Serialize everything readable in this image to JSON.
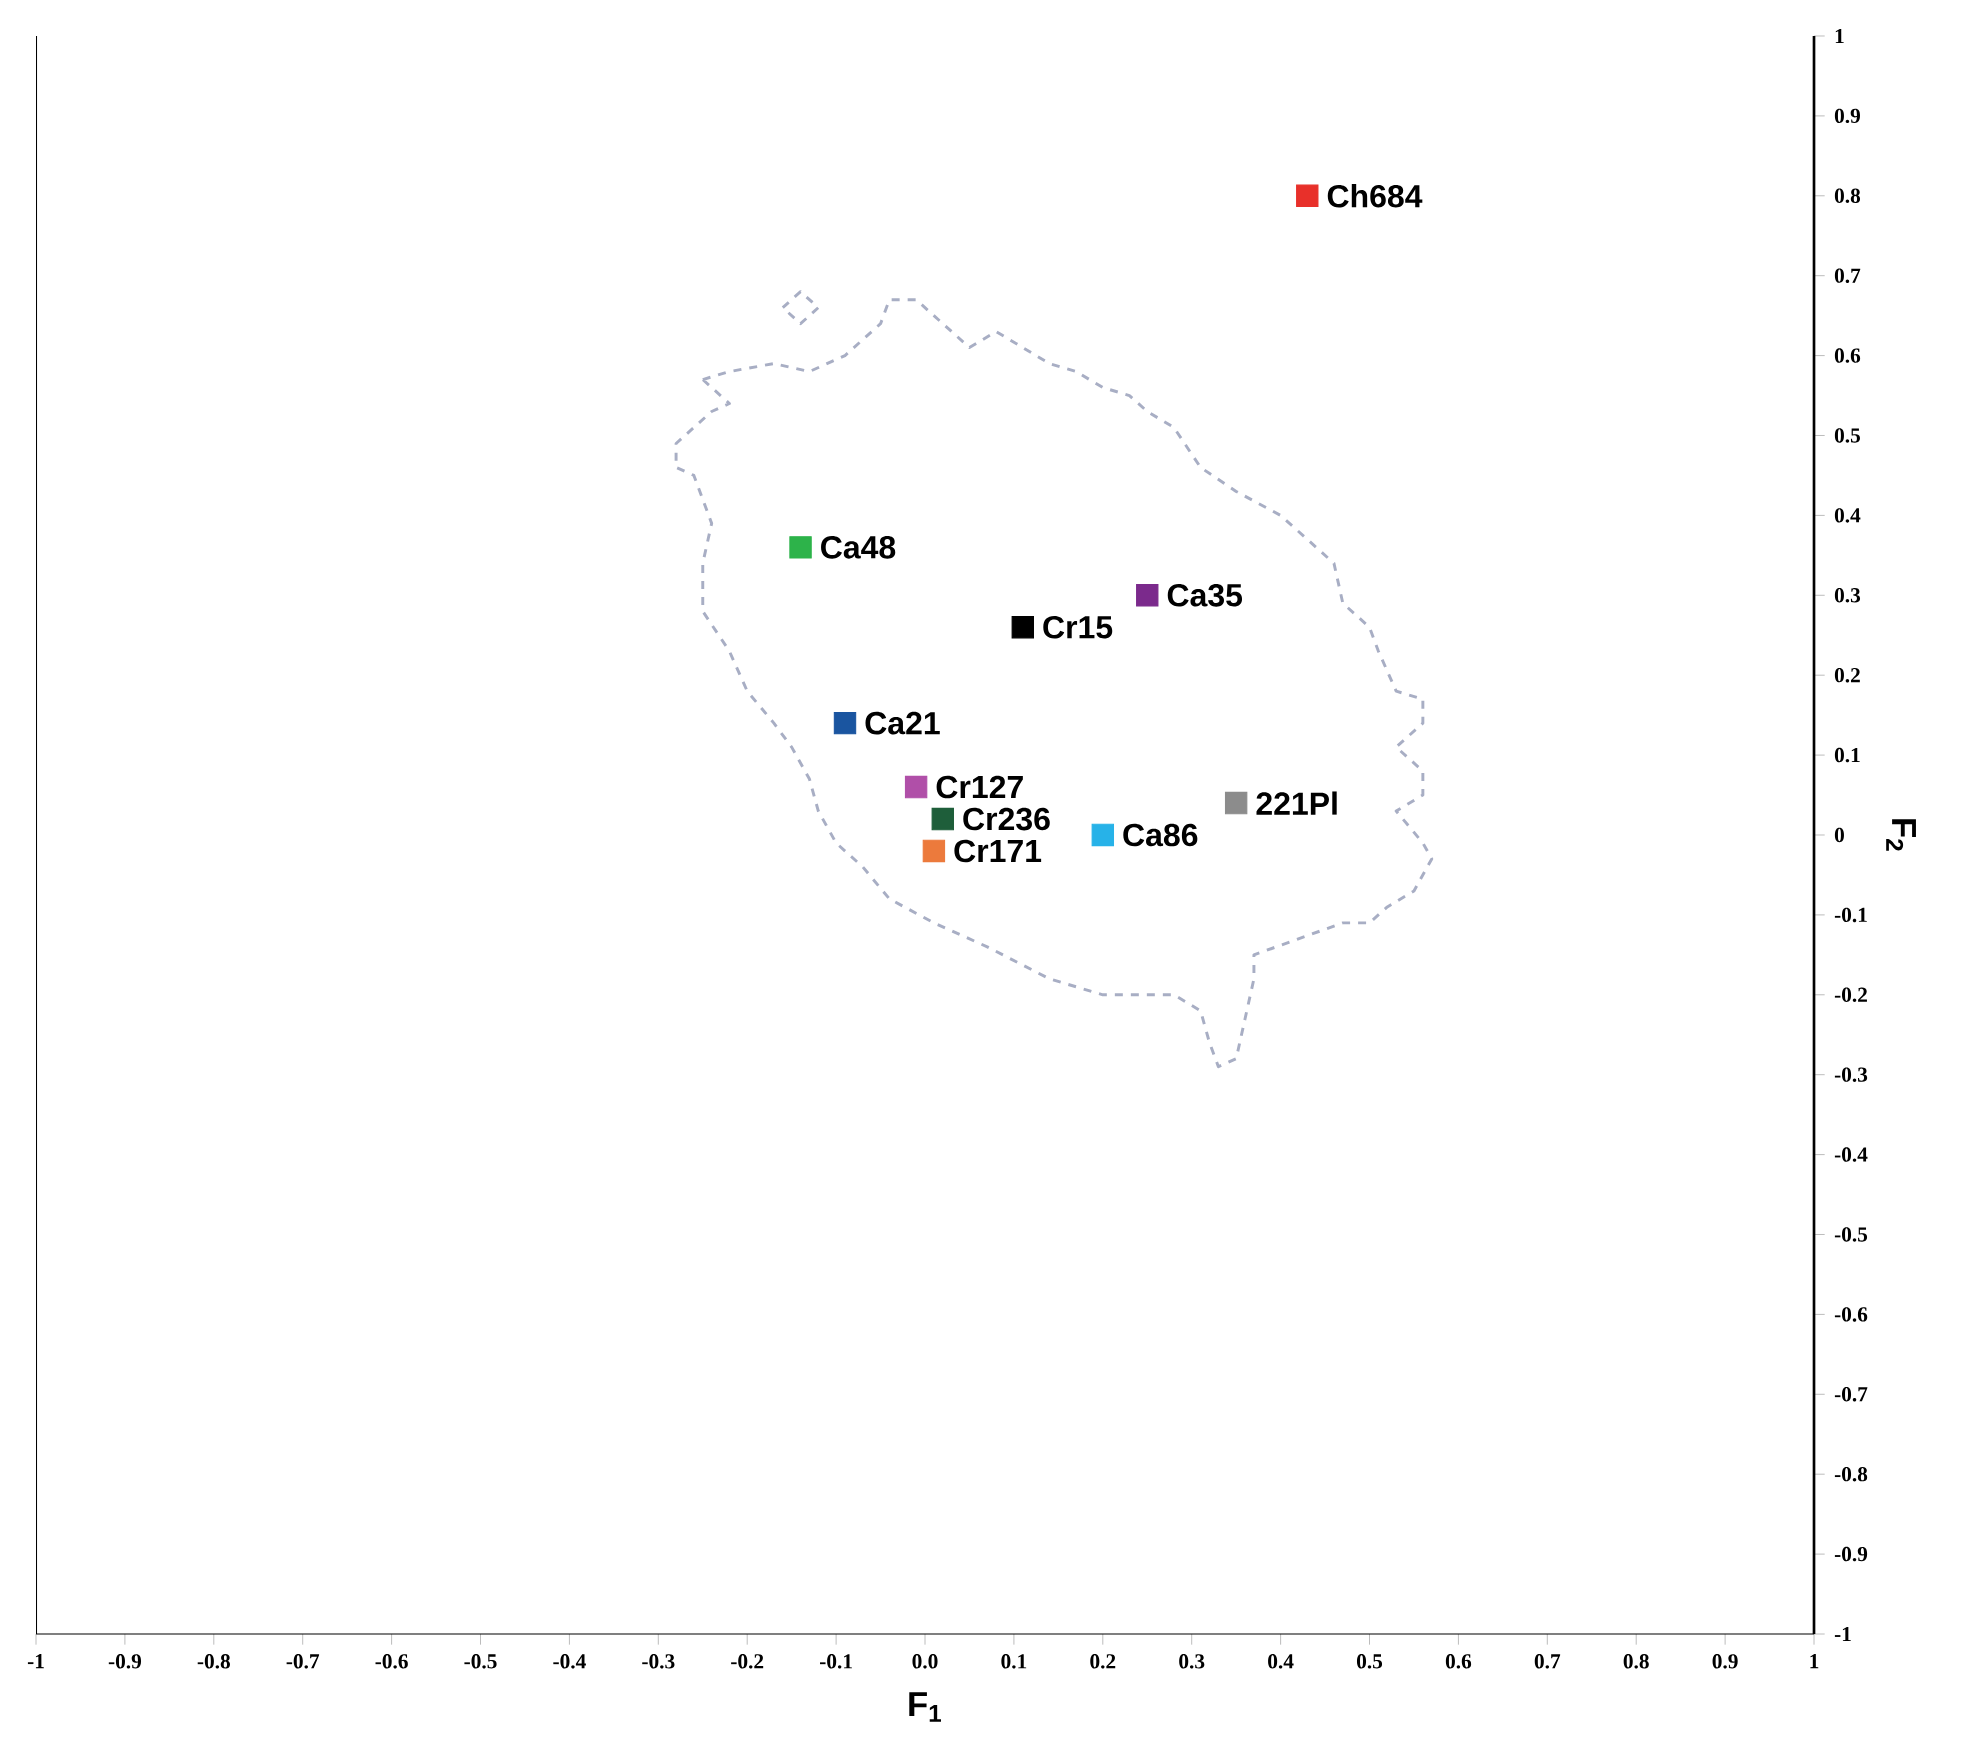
{
  "chart_data": {
    "type": "scatter",
    "xlabel": "F$_{1}$",
    "ylabel": "F$_{2}$",
    "marker": "square",
    "xlim": [
      -1,
      1
    ],
    "ylim": [
      -1,
      1
    ],
    "xticks": [
      -1,
      -0.9,
      -0.8,
      -0.7,
      -0.6,
      -0.5,
      -0.4,
      -0.3,
      -0.2,
      -0.1,
      {
        "value": 0,
        "label": "0.0"
      },
      0.1,
      0.2,
      0.3,
      0.4,
      0.5,
      0.6,
      0.7,
      0.8,
      0.9,
      1
    ],
    "yticks": [
      -1,
      -0.9,
      -0.8,
      -0.7,
      -0.6,
      -0.5,
      -0.4,
      -0.3,
      -0.2,
      -0.1,
      0,
      0.1,
      0.2,
      0.3,
      0.4,
      0.5,
      0.6,
      0.7,
      0.8,
      0.9,
      1
    ],
    "series": [
      {
        "name": "Ch684",
        "color": "#e8302a",
        "x": [
          0.43
        ],
        "values": [
          0.8
        ]
      },
      {
        "name": "Ca48",
        "color": "#2db34a",
        "x": [
          -0.14
        ],
        "values": [
          0.36
        ]
      },
      {
        "name": "Ca35",
        "color": "#7b2a8c",
        "x": [
          0.25
        ],
        "values": [
          0.3
        ]
      },
      {
        "name": "Cr15",
        "color": "#000000",
        "x": [
          0.11
        ],
        "values": [
          0.26
        ]
      },
      {
        "name": "Ca21",
        "color": "#1a55a0",
        "x": [
          -0.09
        ],
        "values": [
          0.14
        ]
      },
      {
        "name": "Cr127",
        "color": "#b04fa8",
        "x": [
          -0.01
        ],
        "values": [
          0.06
        ]
      },
      {
        "name": "Cr236",
        "color": "#1e5e3a",
        "x": [
          0.02
        ],
        "values": [
          0.02
        ]
      },
      {
        "name": "Cr171",
        "color": "#ec7a3c",
        "x": [
          0.01
        ],
        "values": [
          -0.02
        ]
      },
      {
        "name": "Ca86",
        "color": "#27b2e8",
        "x": [
          0.2
        ],
        "values": [
          0.0
        ]
      },
      {
        "name": "221Pl",
        "color": "#8c8c8c",
        "x": [
          0.35
        ],
        "values": [
          0.04
        ]
      }
    ]
  }
}
